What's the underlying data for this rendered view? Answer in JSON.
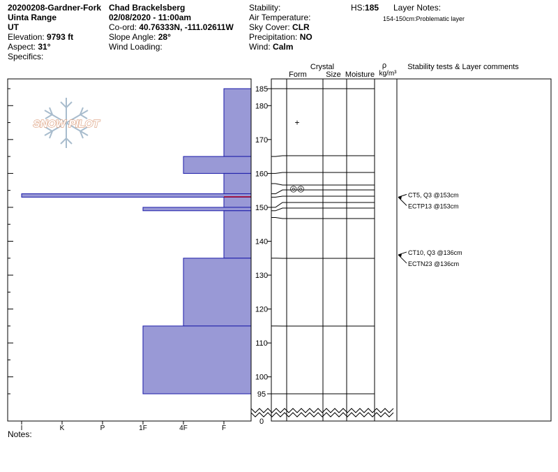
{
  "header": {
    "left": {
      "title": "20200208-Gardner-Fork",
      "range": "Uinta Range",
      "state": "UT",
      "elevation_label": "Elevation:",
      "elevation": "9793 ft",
      "aspect_label": "Aspect:",
      "aspect": "31°",
      "specifics_label": "Specifics:"
    },
    "middle": {
      "observer": "Chad Brackelsberg",
      "datetime": "02/08/2020 - 11:00am",
      "coord_label": "Co-ord:",
      "coord": "40.76333N, -111.02611W",
      "slope_label": "Slope Angle:",
      "slope": "28°",
      "wind_loading_label": "Wind Loading:"
    },
    "right": {
      "stability_label": "Stability:",
      "air_temp_label": "Air Temperature:",
      "sky_label": "Sky Cover:",
      "sky": "CLR",
      "precip_label": "Precipitation:",
      "precip": "NO",
      "wind_label": "Wind:",
      "wind": "Calm"
    },
    "far_right": {
      "hs_label": "HS:",
      "hs": "185",
      "layer_notes_label": "Layer Notes:",
      "layer_note_range": "154-150cm:",
      "layer_note_text": "Problematic layer"
    }
  },
  "columns": {
    "crystal": "Crystal",
    "form": "Form",
    "size": "Size",
    "moisture": "Moisture",
    "rho": "ρ",
    "density_unit": "kg/m³",
    "comments": "Stability tests & Layer comments"
  },
  "logo_text": "SNOW PILOT",
  "notes_label": "Notes:",
  "chart_data": {
    "type": "snow-profile",
    "hardness_scale": [
      "I",
      "K",
      "P",
      "1F",
      "4F",
      "F"
    ],
    "height_ticks": [
      185,
      180,
      170,
      160,
      150,
      140,
      130,
      120,
      110,
      100,
      95,
      0
    ],
    "hardness_layers": [
      {
        "top": 185,
        "bottom": 165,
        "hardness": "F"
      },
      {
        "top": 165,
        "bottom": 160,
        "hardness": "4F"
      },
      {
        "top": 160,
        "bottom": 154,
        "hardness": "F"
      },
      {
        "top": 154,
        "bottom": 153,
        "hardness": "I"
      },
      {
        "top": 153,
        "bottom": 150,
        "hardness": "F"
      },
      {
        "top": 150,
        "bottom": 149,
        "hardness": "1F"
      },
      {
        "top": 149,
        "bottom": 135,
        "hardness": "F"
      },
      {
        "top": 135,
        "bottom": 115,
        "hardness": "4F"
      },
      {
        "top": 115,
        "bottom": 95,
        "hardness": "1F"
      }
    ],
    "layer_boundaries": [
      185,
      165,
      160,
      157,
      154,
      153,
      150,
      149,
      147,
      135,
      115,
      95
    ],
    "crystal_symbols": [
      {
        "height": 175,
        "symbol": "+"
      },
      {
        "height": 155.5,
        "symbol": "◎◎"
      }
    ],
    "weak_layer_marker": 153,
    "stability_tests": [
      {
        "height": 153,
        "text": "CT5, Q3 @153cm"
      },
      {
        "height": 153,
        "text": "ECTP13 @153cm"
      },
      {
        "height": 136,
        "text": "CT10, Q3 @136cm"
      },
      {
        "height": 136,
        "text": "ECTN23 @136cm"
      }
    ]
  }
}
